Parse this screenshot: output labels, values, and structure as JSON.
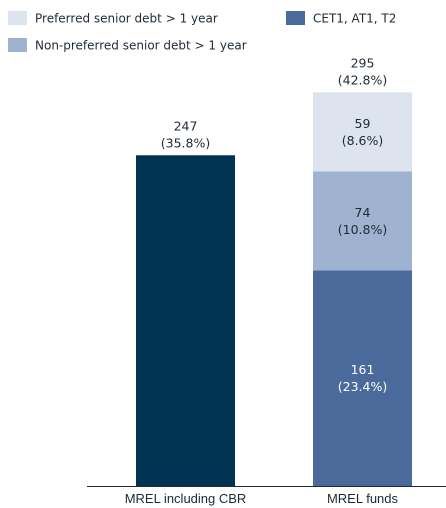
{
  "chart_data": {
    "type": "bar",
    "stacked": true,
    "categories": [
      "MREL including CBR",
      "MREL funds"
    ],
    "series": [
      {
        "name": "CET1, AT1, T2",
        "color": "#4a6a9b",
        "values": [
          null,
          161
        ],
        "labels": [
          "",
          "161"
        ],
        "sublabels": [
          "",
          "(23.4%)"
        ],
        "label_color": "#ffffff"
      },
      {
        "name": "Non-preferred senior debt > 1 year",
        "color": "#9fb2cf",
        "values": [
          null,
          74
        ],
        "labels": [
          "",
          "74"
        ],
        "sublabels": [
          "",
          "(10.8%)"
        ],
        "label_color": "#1f2a35"
      },
      {
        "name": "Preferred senior debt > 1 year",
        "color": "#dde4ee",
        "values": [
          null,
          59
        ],
        "labels": [
          "",
          "59"
        ],
        "sublabels": [
          "",
          "(8.6%)"
        ],
        "label_color": "#1f2a35"
      }
    ],
    "single_bar": {
      "category": "MREL including CBR",
      "value": 247,
      "color": "#003352"
    },
    "totals": [
      {
        "category": "MREL including CBR",
        "value": "247",
        "pct": "(35.8%)"
      },
      {
        "category": "MREL funds",
        "value": "295",
        "pct": "(42.8%)"
      }
    ],
    "legend": [
      {
        "name": "Preferred senior debt > 1 year",
        "color": "#dde4ee"
      },
      {
        "name": "CET1, AT1, T2",
        "color": "#4a6a9b"
      },
      {
        "name": "Non-preferred senior debt > 1 year",
        "color": "#9fb2cf"
      }
    ],
    "legend_position": "top-left",
    "ylim": [
      0,
      295
    ],
    "grid": false
  }
}
